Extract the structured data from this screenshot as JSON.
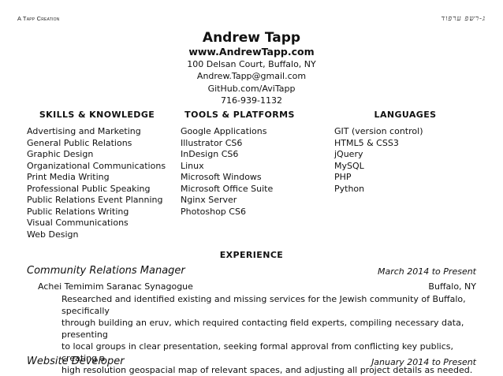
{
  "top_left_note": "A Tapp Creation",
  "top_right_note": "ג-רשפ ערפוד",
  "header": {
    "name": "Andrew Tapp",
    "website": "www.AndrewTapp.com",
    "address": "100 Delsan Court, Buffalo, NY",
    "email": "Andrew.Tapp@gmail.com",
    "github": "GitHub.com/AviTapp",
    "phone": "716-939-1132"
  },
  "columns": {
    "skills": {
      "heading": "SKILLS & KNOWLEDGE",
      "items": [
        "Advertising and Marketing",
        "General Public Relations",
        "Graphic Design",
        "Organizational Communications",
        "Print Media Writing",
        "Professional Public Speaking",
        "Public Relations Event Planning",
        "Public Relations Writing",
        "Visual Communications",
        "Web Design"
      ]
    },
    "tools": {
      "heading": "TOOLS & PLATFORMS",
      "items": [
        "Google Applications",
        "Illustrator CS6",
        "InDesign CS6",
        "Linux",
        "Microsoft Windows",
        "Microsoft Office Suite",
        "Nginx Server",
        "Photoshop CS6"
      ]
    },
    "languages": {
      "heading": "LANGUAGES",
      "items": [
        "GIT (version control)",
        "HTML5 & CSS3",
        "jQuery",
        "MySQL",
        "PHP",
        "Python"
      ]
    }
  },
  "experience": {
    "heading": "EXPERIENCE",
    "jobs": [
      {
        "title": "Community Relations Manager",
        "dates": "March 2014 to Present",
        "organization": "Achei Temimim Saranac Synagogue",
        "location": "Buffalo, NY",
        "description_lines": [
          "Researched and identified existing and missing services for the Jewish community of Buffalo, specifically",
          "through building an eruv, which required contacting field experts, compiling necessary data, presenting",
          "to local groups in clear presentation, seeking formal approval from conflicting key publics, creating a",
          "high resolution geospacial map of relevant spaces, and adjusting all project details as needed."
        ]
      },
      {
        "title": "Website Developer",
        "dates": "January 2014 to Present"
      }
    ]
  }
}
